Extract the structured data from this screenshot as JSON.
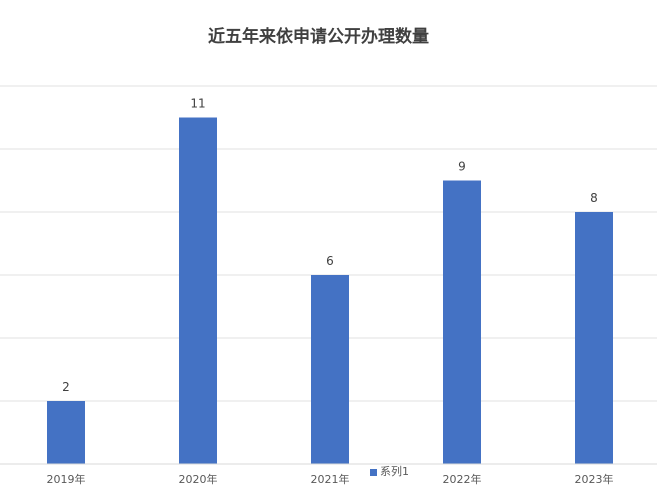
{
  "chart_data": {
    "type": "bar",
    "title": "近五年来依申请公开办理数量",
    "categories": [
      "2019年",
      "2020年",
      "2021年",
      "2022年",
      "2023年"
    ],
    "series": [
      {
        "name": "系列1",
        "values": [
          2,
          11,
          6,
          9,
          8
        ],
        "color": "#4472c4"
      }
    ],
    "ylim": [
      0,
      12
    ],
    "grid": true,
    "gridline_step": 2,
    "data_labels": true,
    "legend": "bottom",
    "xlabel": "",
    "ylabel": ""
  }
}
